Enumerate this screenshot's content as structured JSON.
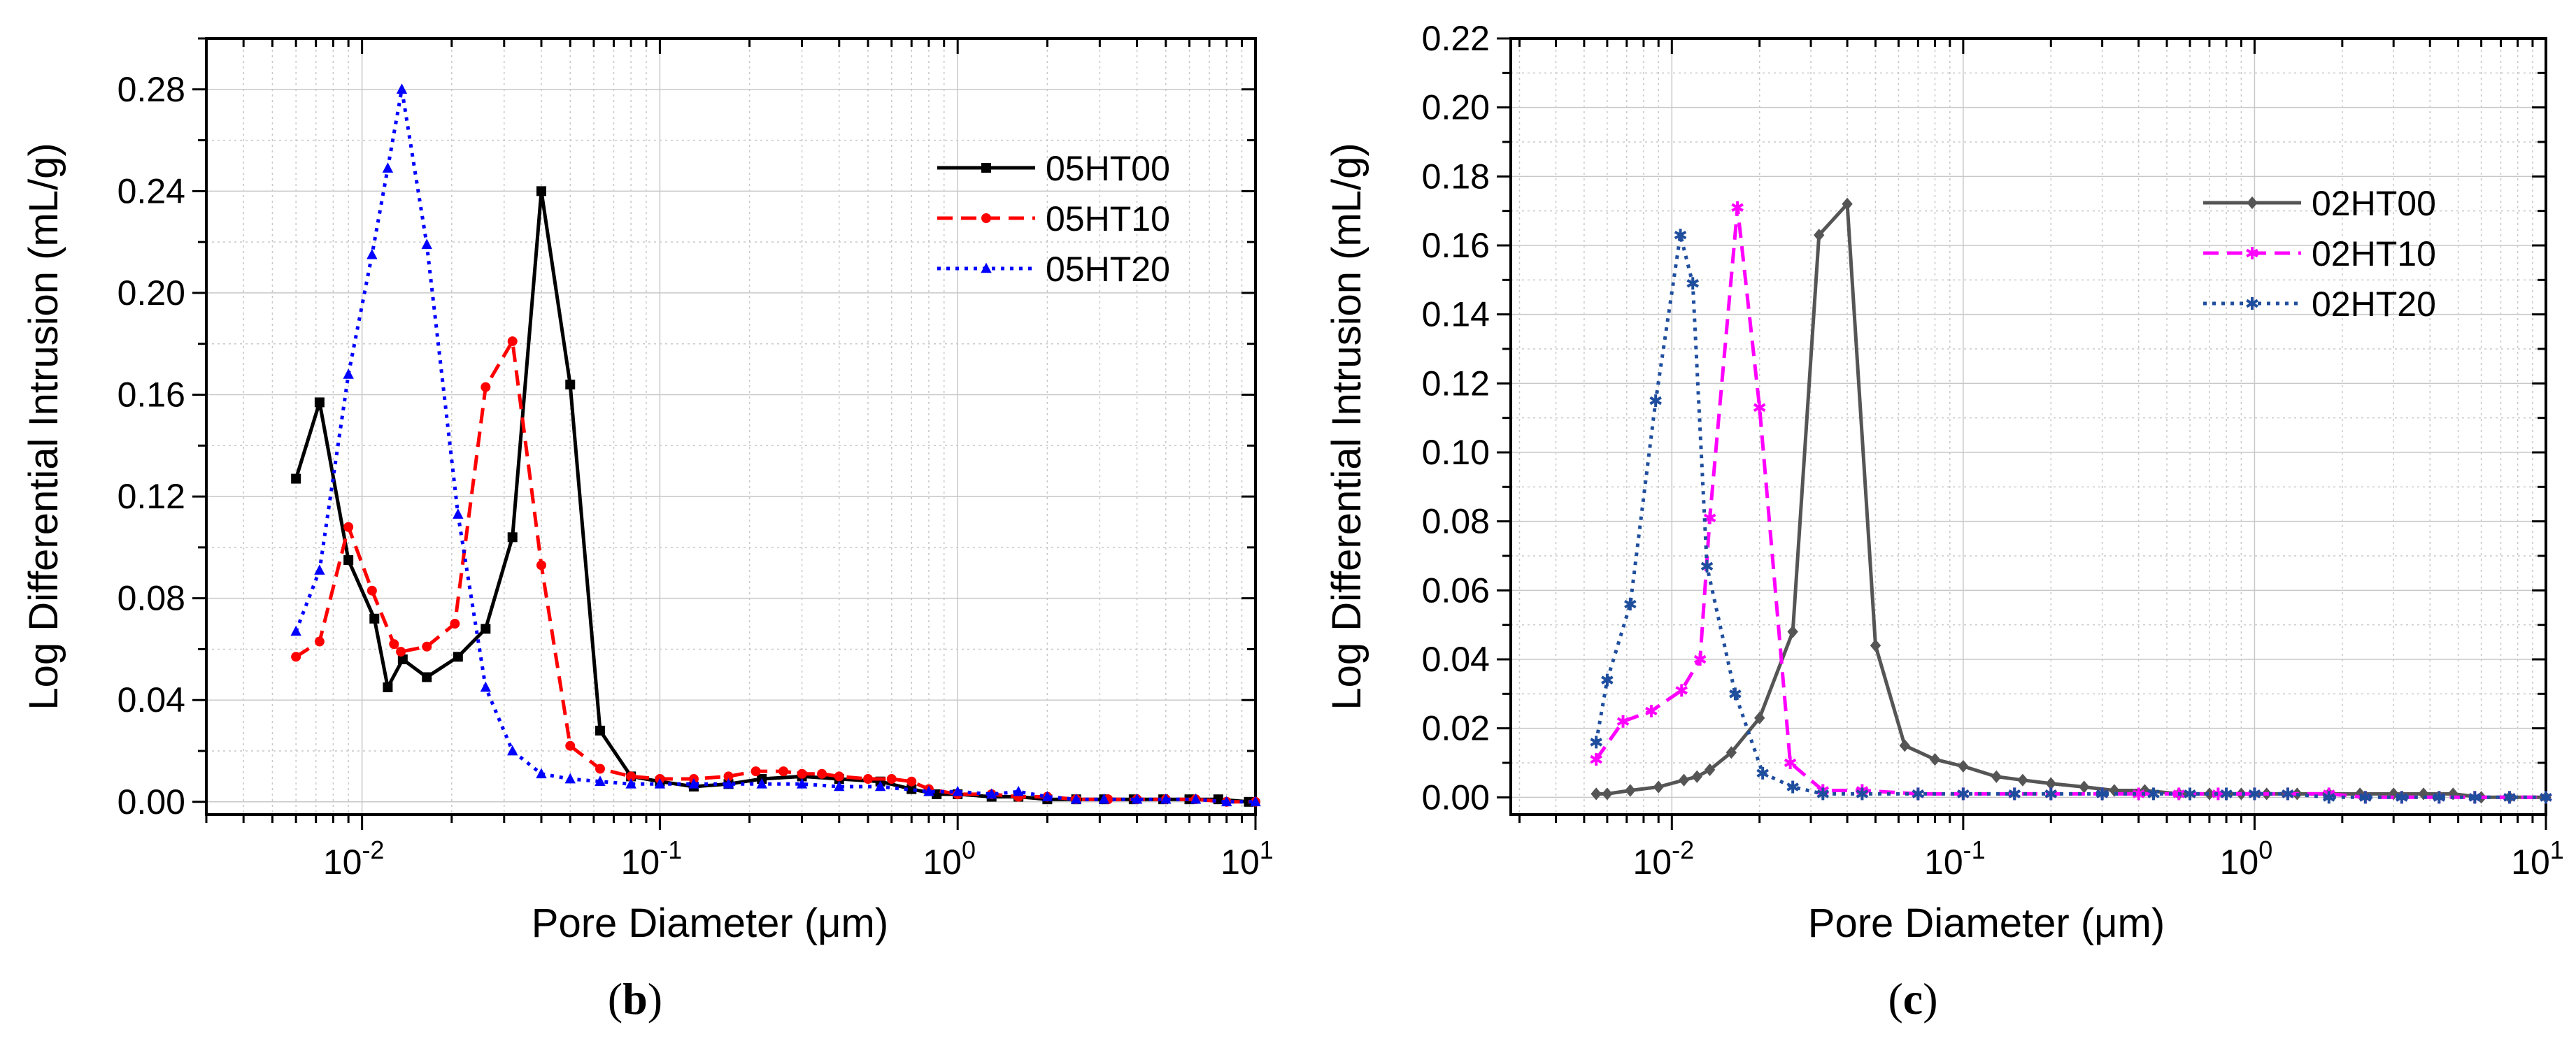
{
  "chart_data": [
    {
      "type": "line",
      "panel_label": "b",
      "xlabel": "Pore Diameter (μm)",
      "ylabel": "Log Differential Intrusion (mL/g)",
      "xscale": "log",
      "xlim": [
        0.003,
        10
      ],
      "ylim": [
        -0.005,
        0.3
      ],
      "x_ticks": [
        {
          "base": "10",
          "exp": "-2",
          "value": 0.01
        },
        {
          "base": "10",
          "exp": "-1",
          "value": 0.1
        },
        {
          "base": "10",
          "exp": "0",
          "value": 1
        },
        {
          "base": "10",
          "exp": "1",
          "value": 10
        }
      ],
      "y_ticks": [
        "0.00",
        "0.04",
        "0.08",
        "0.12",
        "0.16",
        "0.20",
        "0.24",
        "0.28"
      ],
      "y_tick_values": [
        0,
        0.04,
        0.08,
        0.12,
        0.16,
        0.2,
        0.24,
        0.28
      ],
      "legend_position": "top-right",
      "series": [
        {
          "name": "05HT00",
          "color": "#000000",
          "dash": "solid",
          "marker": "square",
          "x": [
            0.006,
            0.0072,
            0.009,
            0.011,
            0.0122,
            0.0137,
            0.0165,
            0.021,
            0.026,
            0.032,
            0.04,
            0.05,
            0.063,
            0.08,
            0.1,
            0.13,
            0.17,
            0.22,
            0.3,
            0.4,
            0.55,
            0.7,
            0.85,
            1.0,
            1.3,
            1.6,
            2.0,
            2.5,
            3.1,
            3.9,
            4.9,
            6.0,
            7.5,
            9.5
          ],
          "y": [
            0.127,
            0.157,
            0.095,
            0.072,
            0.045,
            0.056,
            0.049,
            0.057,
            0.068,
            0.104,
            0.24,
            0.164,
            0.028,
            0.01,
            0.008,
            0.006,
            0.007,
            0.009,
            0.01,
            0.009,
            0.008,
            0.005,
            0.003,
            0.003,
            0.002,
            0.002,
            0.001,
            0.001,
            0.001,
            0.001,
            0.001,
            0.001,
            0.001,
            0.0
          ]
        },
        {
          "name": "05HT10",
          "color": "#ff0000",
          "dash": "dashed",
          "marker": "circle",
          "x": [
            0.006,
            0.0072,
            0.009,
            0.0108,
            0.0128,
            0.0135,
            0.0165,
            0.0205,
            0.026,
            0.032,
            0.04,
            0.05,
            0.063,
            0.08,
            0.1,
            0.13,
            0.17,
            0.21,
            0.26,
            0.3,
            0.35,
            0.4,
            0.5,
            0.6,
            0.7,
            0.8,
            1.0,
            1.3,
            1.6,
            2.0,
            2.5,
            3.2,
            4.0,
            5.0,
            6.3,
            8.0,
            10.0
          ],
          "y": [
            0.057,
            0.063,
            0.108,
            0.083,
            0.062,
            0.059,
            0.061,
            0.07,
            0.163,
            0.181,
            0.093,
            0.022,
            0.013,
            0.01,
            0.009,
            0.009,
            0.01,
            0.012,
            0.012,
            0.011,
            0.011,
            0.01,
            0.009,
            0.009,
            0.008,
            0.005,
            0.003,
            0.003,
            0.002,
            0.002,
            0.001,
            0.001,
            0.001,
            0.001,
            0.001,
            0.0,
            0.0
          ]
        },
        {
          "name": "05HT20",
          "color": "#0000ff",
          "dash": "dotted",
          "marker": "triangle",
          "x": [
            0.006,
            0.0072,
            0.009,
            0.0108,
            0.0122,
            0.0136,
            0.0165,
            0.021,
            0.026,
            0.032,
            0.04,
            0.05,
            0.063,
            0.08,
            0.1,
            0.13,
            0.17,
            0.22,
            0.3,
            0.4,
            0.55,
            0.8,
            1.0,
            1.3,
            1.6,
            2.0,
            2.5,
            3.1,
            4.0,
            5.0,
            6.3,
            8.0,
            10.0
          ],
          "y": [
            0.067,
            0.091,
            0.168,
            0.215,
            0.249,
            0.28,
            0.219,
            0.113,
            0.045,
            0.02,
            0.011,
            0.009,
            0.008,
            0.007,
            0.007,
            0.007,
            0.007,
            0.007,
            0.007,
            0.006,
            0.006,
            0.004,
            0.004,
            0.003,
            0.004,
            0.002,
            0.001,
            0.001,
            0.001,
            0.001,
            0.001,
            0.0,
            0.0
          ]
        }
      ]
    },
    {
      "type": "line",
      "panel_label": "c",
      "xlabel": "Pore Diameter (μm)",
      "ylabel": "Log Differential Intrusion (mL/g)",
      "xscale": "log",
      "xlim": [
        0.0028,
        10
      ],
      "ylim": [
        -0.005,
        0.22
      ],
      "x_ticks": [
        {
          "base": "10",
          "exp": "-2",
          "value": 0.01
        },
        {
          "base": "10",
          "exp": "-1",
          "value": 0.1
        },
        {
          "base": "10",
          "exp": "0",
          "value": 1
        },
        {
          "base": "10",
          "exp": "1",
          "value": 10
        }
      ],
      "y_ticks": [
        "0.00",
        "0.02",
        "0.04",
        "0.06",
        "0.08",
        "0.10",
        "0.12",
        "0.14",
        "0.16",
        "0.18",
        "0.20",
        "0.22"
      ],
      "y_tick_values": [
        0,
        0.02,
        0.04,
        0.06,
        0.08,
        0.1,
        0.12,
        0.14,
        0.16,
        0.18,
        0.2,
        0.22
      ],
      "legend_position": "top-right",
      "series": [
        {
          "name": "02HT00",
          "color": "#555555",
          "dash": "solid",
          "marker": "diamond",
          "x": [
            0.0055,
            0.006,
            0.0072,
            0.009,
            0.011,
            0.0122,
            0.0135,
            0.016,
            0.02,
            0.026,
            0.032,
            0.04,
            0.05,
            0.063,
            0.08,
            0.1,
            0.13,
            0.16,
            0.2,
            0.26,
            0.33,
            0.42,
            0.55,
            0.7,
            0.9,
            1.1,
            1.4,
            1.8,
            2.3,
            3.0,
            3.8,
            4.8,
            6.0,
            7.5,
            10.0
          ],
          "y": [
            0.001,
            0.001,
            0.002,
            0.003,
            0.005,
            0.006,
            0.008,
            0.013,
            0.023,
            0.048,
            0.163,
            0.172,
            0.044,
            0.015,
            0.011,
            0.009,
            0.006,
            0.005,
            0.004,
            0.003,
            0.002,
            0.002,
            0.001,
            0.001,
            0.001,
            0.001,
            0.001,
            0.001,
            0.001,
            0.001,
            0.001,
            0.001,
            0.0,
            0.0,
            0.0
          ]
        },
        {
          "name": "02HT10",
          "color": "#ff00ff",
          "dash": "dashed",
          "marker": "star",
          "x": [
            0.0055,
            0.0068,
            0.0085,
            0.0108,
            0.0125,
            0.0135,
            0.0168,
            0.02,
            0.0255,
            0.033,
            0.045,
            0.07,
            0.1,
            0.15,
            0.2,
            0.3,
            0.4,
            0.55,
            0.75,
            1.0,
            1.3,
            1.8,
            2.4,
            3.2,
            4.3,
            5.7,
            7.5,
            10.0
          ],
          "y": [
            0.011,
            0.022,
            0.025,
            0.031,
            0.04,
            0.081,
            0.171,
            0.113,
            0.01,
            0.002,
            0.002,
            0.001,
            0.001,
            0.001,
            0.001,
            0.001,
            0.001,
            0.001,
            0.001,
            0.001,
            0.001,
            0.001,
            0.0,
            0.0,
            0.0,
            0.0,
            0.0,
            0.0
          ]
        },
        {
          "name": "02HT20",
          "color": "#1f4e9e",
          "dash": "dotted",
          "marker": "asterisk",
          "x": [
            0.0055,
            0.006,
            0.0072,
            0.0088,
            0.0107,
            0.0118,
            0.0132,
            0.0165,
            0.0205,
            0.026,
            0.033,
            0.045,
            0.07,
            0.1,
            0.15,
            0.2,
            0.3,
            0.45,
            0.6,
            0.8,
            1.0,
            1.3,
            1.8,
            2.4,
            3.2,
            4.3,
            5.7,
            7.5,
            10.0
          ],
          "y": [
            0.016,
            0.034,
            0.056,
            0.115,
            0.163,
            0.149,
            0.067,
            0.03,
            0.007,
            0.003,
            0.001,
            0.001,
            0.001,
            0.001,
            0.001,
            0.001,
            0.001,
            0.001,
            0.001,
            0.001,
            0.001,
            0.001,
            0.0,
            0.0,
            0.0,
            0.0,
            0.0,
            0.0,
            0.0
          ]
        }
      ]
    }
  ]
}
